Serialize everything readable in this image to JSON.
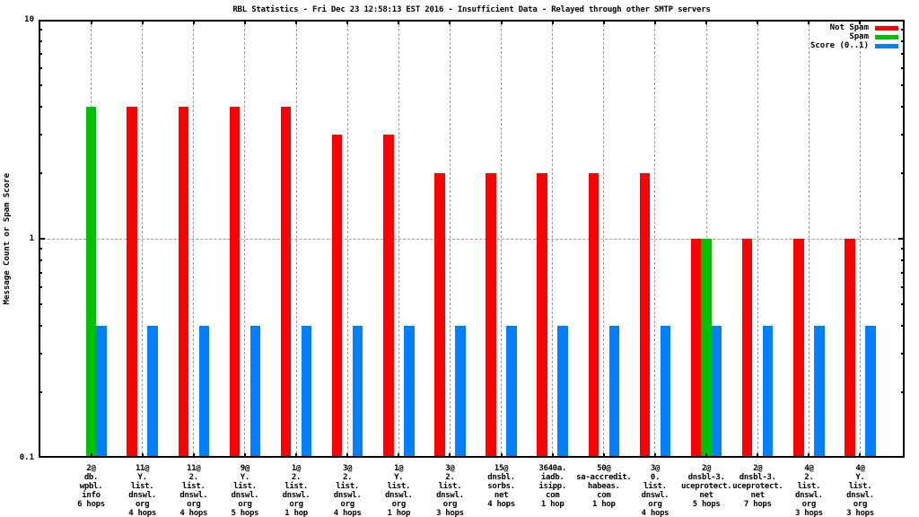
{
  "title": "RBL Statistics - Fri Dec 23 12:58:13 EST 2016 - Insufficient Data - Relayed through other SMTP servers",
  "y_axis": {
    "label": "Message Count or Spam Score"
  },
  "legend": {
    "position": "top-right",
    "items": [
      {
        "label": "Not Spam",
        "color": "#ff0000"
      },
      {
        "label": "Spam",
        "color": "#00c000"
      },
      {
        "label": "Score (0..1)",
        "color": "#0080ff"
      }
    ]
  },
  "chart_data": {
    "type": "bar",
    "scale": "log",
    "ylim": [
      0.1,
      10
    ],
    "grid": true,
    "legend_position": "top-right",
    "title": "RBL Statistics - Fri Dec 23 12:58:13 EST 2016 - Insufficient Data - Relayed through other SMTP servers",
    "xlabel": "",
    "ylabel": "Message Count or Spam Score",
    "y_ticks": [
      {
        "value": 10,
        "label": "10"
      },
      {
        "value": 1,
        "label": "1"
      },
      {
        "value": 0.1,
        "label": "0.1"
      }
    ],
    "categories": [
      [
        "2@",
        "db.",
        "wpbl.",
        "info",
        "6 hops"
      ],
      [
        "11@",
        "Y.",
        "list.",
        "dnswl.",
        "org",
        "4 hops"
      ],
      [
        "11@",
        "2.",
        "list.",
        "dnswl.",
        "org",
        "4 hops"
      ],
      [
        "9@",
        "Y.",
        "list.",
        "dnswl.",
        "org",
        "5 hops"
      ],
      [
        "1@",
        "2.",
        "list.",
        "dnswl.",
        "org",
        "1 hop"
      ],
      [
        "3@",
        "2.",
        "list.",
        "dnswl.",
        "org",
        "4 hops"
      ],
      [
        "1@",
        "Y.",
        "list.",
        "dnswl.",
        "org",
        "1 hop"
      ],
      [
        "3@",
        "2.",
        "list.",
        "dnswl.",
        "org",
        "3 hops"
      ],
      [
        "15@",
        "dnsbl.",
        "sorbs.",
        "net",
        "4 hops"
      ],
      [
        "3640a.",
        "iadb.",
        "isipp.",
        "com",
        "1 hop"
      ],
      [
        "50@",
        "sa-accredit.",
        "habeas.",
        "com",
        "1 hop"
      ],
      [
        "3@",
        "0.",
        "list.",
        "dnswl.",
        "org",
        "4 hops"
      ],
      [
        "2@",
        "dnsbl-3.",
        "uceprotect.",
        "net",
        "5 hops"
      ],
      [
        "2@",
        "dnsbl-3.",
        "uceprotect.",
        "net",
        "7 hops"
      ],
      [
        "4@",
        "2.",
        "list.",
        "dnswl.",
        "org",
        "3 hops"
      ],
      [
        "4@",
        "Y.",
        "list.",
        "dnswl.",
        "org",
        "3 hops"
      ]
    ],
    "series": [
      {
        "name": "Not Spam",
        "color": "#ff0000",
        "values": [
          null,
          4,
          4,
          4,
          4,
          3,
          3,
          2,
          2,
          2,
          2,
          2,
          1,
          1,
          1,
          1
        ]
      },
      {
        "name": "Spam",
        "color": "#00c000",
        "values": [
          4,
          null,
          null,
          null,
          null,
          null,
          null,
          null,
          null,
          null,
          null,
          null,
          1,
          null,
          null,
          null
        ]
      },
      {
        "name": "Score (0..1)",
        "color": "#0080ff",
        "values": [
          0.4,
          0.4,
          0.4,
          0.4,
          0.4,
          0.4,
          0.4,
          0.4,
          0.4,
          0.4,
          0.4,
          0.4,
          0.4,
          0.4,
          0.4,
          0.4
        ]
      }
    ]
  }
}
